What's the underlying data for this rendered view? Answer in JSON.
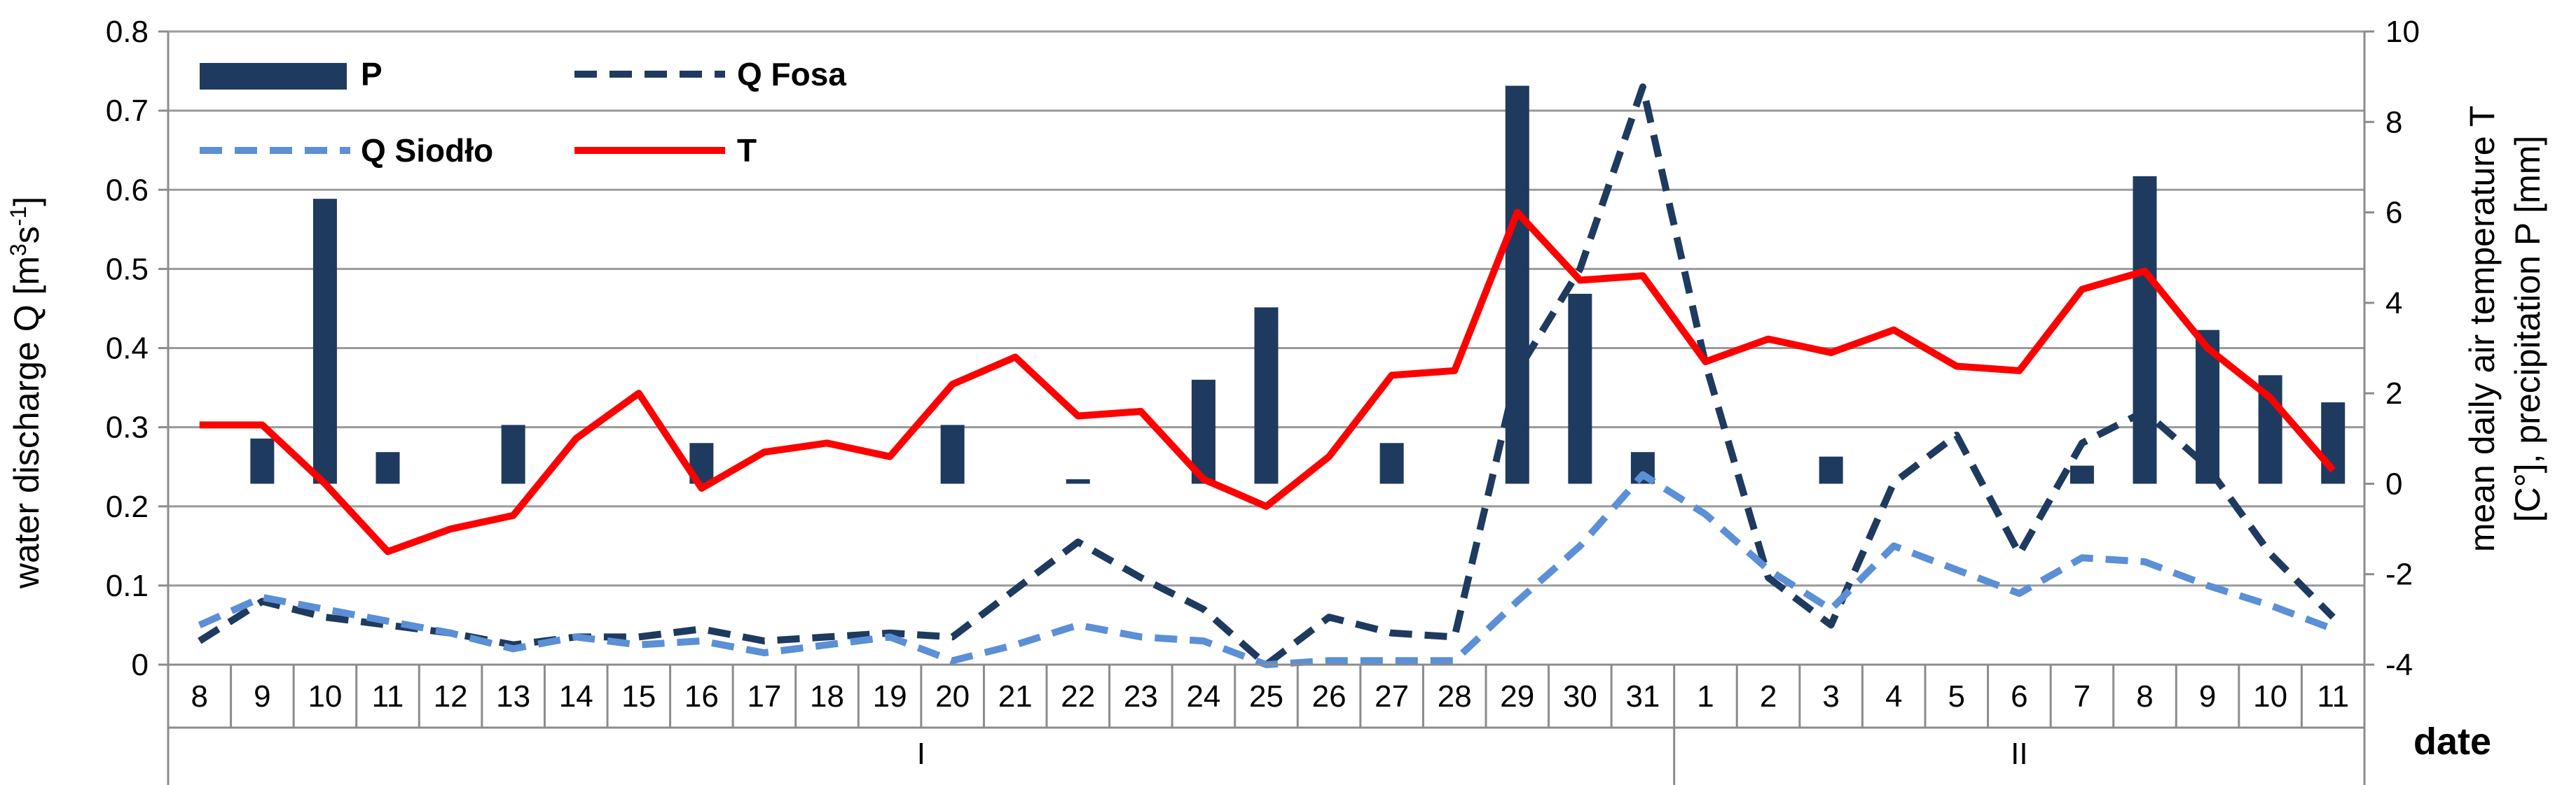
{
  "chart_data": {
    "type": "bar+line",
    "categories": [
      "8",
      "9",
      "10",
      "11",
      "12",
      "13",
      "14",
      "15",
      "16",
      "17",
      "18",
      "19",
      "20",
      "21",
      "22",
      "23",
      "24",
      "25",
      "26",
      "27",
      "28",
      "29",
      "30",
      "31",
      "1",
      "2",
      "3",
      "4",
      "5",
      "6",
      "7",
      "8",
      "9",
      "10",
      "11"
    ],
    "month_groups": [
      {
        "label": "I",
        "from": 0,
        "to": 23
      },
      {
        "label": "II",
        "from": 24,
        "to": 34
      }
    ],
    "x_axis_title": "date",
    "y_left": {
      "title": "water discharge Q [m³s⁻¹]",
      "title_main": "water discharge Q [m",
      "title_sup1": "3",
      "title_mid": "s",
      "title_sup2": "-1",
      "title_end": "]",
      "min": 0,
      "max": 0.8,
      "ticks": [
        "0",
        "0.1",
        "0.2",
        "0.3",
        "0.4",
        "0.5",
        "0.6",
        "0.7",
        "0.8"
      ]
    },
    "y_right": {
      "title_line1": "mean daily air temperature T",
      "title_line2": "[C°], precipitation P [mm]",
      "min": -4,
      "max": 10,
      "ticks": [
        "-4",
        "-2",
        "0",
        "2",
        "4",
        "6",
        "8",
        "10"
      ]
    },
    "grid": true,
    "legend_position": "top-left",
    "series": [
      {
        "name": "P",
        "type": "bar",
        "axis": "right",
        "color": "#1f3a5f",
        "values": [
          0,
          1.0,
          6.3,
          0.7,
          0,
          1.3,
          0,
          0,
          0.9,
          0,
          0,
          0,
          1.3,
          0,
          0.1,
          0,
          2.3,
          3.9,
          0,
          0.9,
          0,
          8.8,
          4.2,
          0.7,
          0,
          0,
          0.6,
          0,
          0,
          0,
          0.4,
          6.8,
          3.4,
          2.4,
          1.8
        ]
      },
      {
        "name": "Q Fosa",
        "type": "line",
        "style": "dashed",
        "axis": "left",
        "color": "#1f3a5f",
        "values": [
          0.03,
          0.08,
          0.06,
          0.05,
          0.04,
          0.025,
          0.035,
          0.035,
          0.045,
          0.03,
          0.035,
          0.04,
          0.035,
          0.095,
          0.155,
          0.11,
          0.07,
          0.0,
          0.06,
          0.04,
          0.035,
          0.37,
          0.5,
          0.73,
          0.38,
          0.11,
          0.05,
          0.23,
          0.29,
          0.14,
          0.28,
          0.32,
          0.25,
          0.14,
          0.06
        ]
      },
      {
        "name": "Q Siodło",
        "type": "line",
        "style": "dashed",
        "axis": "left",
        "color": "#5b8fd6",
        "values": [
          0.05,
          0.085,
          0.07,
          0.055,
          0.04,
          0.02,
          0.035,
          0.025,
          0.03,
          0.015,
          0.025,
          0.035,
          0.005,
          0.025,
          0.05,
          0.035,
          0.03,
          0.0,
          0.005,
          0.005,
          0.005,
          0.08,
          0.15,
          0.24,
          0.19,
          0.12,
          0.07,
          0.15,
          0.12,
          0.09,
          0.135,
          0.13,
          0.1,
          0.075,
          0.045
        ]
      },
      {
        "name": "T",
        "type": "line",
        "style": "solid",
        "axis": "right",
        "color": "#ff0000",
        "values": [
          1.3,
          1.3,
          0.0,
          -1.5,
          -1.0,
          -0.7,
          1.0,
          2.0,
          -0.1,
          0.7,
          0.9,
          0.6,
          2.2,
          2.8,
          1.5,
          1.6,
          0.1,
          -0.5,
          0.6,
          2.4,
          2.5,
          6.0,
          4.5,
          4.6,
          2.7,
          3.2,
          2.9,
          3.4,
          2.6,
          2.5,
          4.3,
          4.7,
          3.0,
          1.9,
          0.3
        ]
      }
    ]
  }
}
